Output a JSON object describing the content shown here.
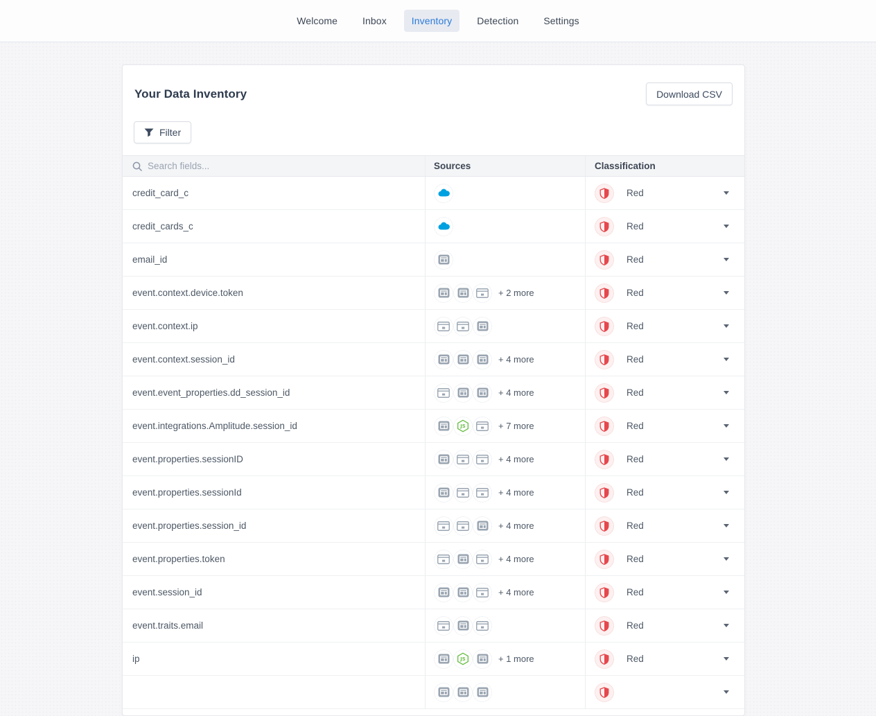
{
  "nav": {
    "items": [
      {
        "label": "Welcome",
        "active": false
      },
      {
        "label": "Inbox",
        "active": false
      },
      {
        "label": "Inventory",
        "active": true
      },
      {
        "label": "Detection",
        "active": false
      },
      {
        "label": "Settings",
        "active": false
      }
    ]
  },
  "panel": {
    "title": "Your Data Inventory",
    "download_button": "Download CSV",
    "filter_button": "Filter"
  },
  "table": {
    "search_placeholder": "Search fields...",
    "columns": {
      "sources": "Sources",
      "classification": "Classification"
    },
    "rows": [
      {
        "field": "credit_card_c",
        "sources": [
          "salesforce"
        ],
        "more": "",
        "classification": "Red"
      },
      {
        "field": "credit_cards_c",
        "sources": [
          "salesforce"
        ],
        "more": "",
        "classification": "Red"
      },
      {
        "field": "email_id",
        "sources": [
          "application"
        ],
        "more": "",
        "classification": "Red"
      },
      {
        "field": "event.context.device.token",
        "sources": [
          "application",
          "application",
          "webpage"
        ],
        "more": "+ 2 more",
        "classification": "Red"
      },
      {
        "field": "event.context.ip",
        "sources": [
          "webpage",
          "webpage",
          "application"
        ],
        "more": "",
        "classification": "Red"
      },
      {
        "field": "event.context.session_id",
        "sources": [
          "application",
          "application",
          "application"
        ],
        "more": "+ 4 more",
        "classification": "Red"
      },
      {
        "field": "event.event_properties.dd_session_id",
        "sources": [
          "webpage",
          "application",
          "application"
        ],
        "more": "+ 4 more",
        "classification": "Red"
      },
      {
        "field": "event.integrations.Amplitude.session_id",
        "sources": [
          "application",
          "nodejs",
          "webpage"
        ],
        "more": "+ 7 more",
        "classification": "Red"
      },
      {
        "field": "event.properties.sessionID",
        "sources": [
          "application",
          "webpage",
          "webpage"
        ],
        "more": "+ 4 more",
        "classification": "Red"
      },
      {
        "field": "event.properties.sessionId",
        "sources": [
          "application",
          "webpage",
          "webpage"
        ],
        "more": "+ 4 more",
        "classification": "Red"
      },
      {
        "field": "event.properties.session_id",
        "sources": [
          "webpage",
          "webpage",
          "application"
        ],
        "more": "+ 4 more",
        "classification": "Red"
      },
      {
        "field": "event.properties.token",
        "sources": [
          "webpage",
          "application",
          "webpage"
        ],
        "more": "+ 4 more",
        "classification": "Red"
      },
      {
        "field": "event.session_id",
        "sources": [
          "application",
          "application",
          "webpage"
        ],
        "more": "+ 4 more",
        "classification": "Red"
      },
      {
        "field": "event.traits.email",
        "sources": [
          "webpage",
          "application",
          "webpage"
        ],
        "more": "",
        "classification": "Red"
      },
      {
        "field": "ip",
        "sources": [
          "application",
          "nodejs",
          "application"
        ],
        "more": "+ 1 more",
        "classification": "Red"
      },
      {
        "field": "",
        "sources": [
          "application",
          "application",
          "application"
        ],
        "more": "",
        "classification": ""
      }
    ]
  },
  "colors": {
    "accent_blue": "#2b7cd9",
    "salesforce_blue": "#00A1E0",
    "nodejs_green": "#6cc04a",
    "classification_red": "#e5484d"
  }
}
